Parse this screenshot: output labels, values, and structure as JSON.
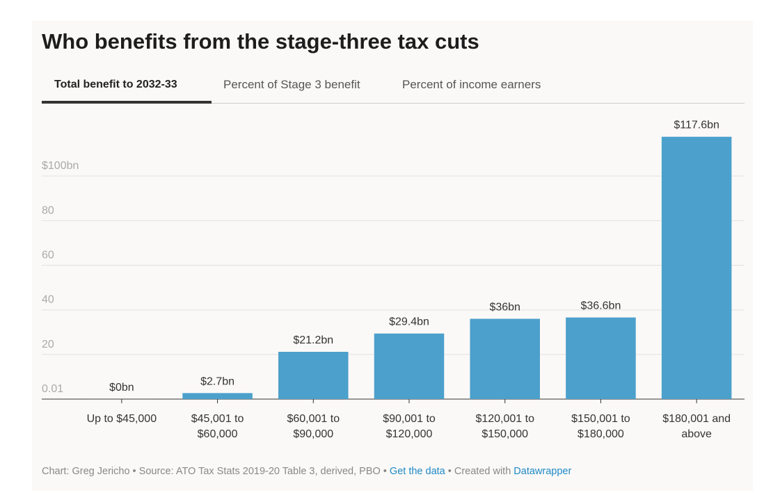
{
  "header": {
    "title": "Who benefits from the stage-three tax cuts"
  },
  "tabs": [
    "Total benefit to 2032-33",
    "Percent of Stage 3 benefit",
    "Percent of income earners"
  ],
  "chart_data": {
    "type": "bar",
    "categories": [
      "Up to $45,000",
      "$45,001 to\n$60,000",
      "$60,001 to\n$90,000",
      "$90,001 to\n$120,000",
      "$120,001 to\n$150,000",
      "$150,001 to\n$180,000",
      "$180,001 and\nabove"
    ],
    "values": [
      0,
      2.7,
      21.2,
      29.4,
      36,
      36.6,
      117.6
    ],
    "value_labels": [
      "$0bn",
      "$2.7bn",
      "$21.2bn",
      "$29.4bn",
      "$36bn",
      "$36.6bn",
      "$117.6bn"
    ],
    "color": "#4ca0cc",
    "ylim": [
      0.01,
      120
    ],
    "yticks": [
      0.01,
      20,
      40,
      60,
      80,
      {
        "value": 100,
        "label": "$100bn"
      }
    ],
    "grid": true
  },
  "footer": {
    "credit": "Chart: Greg Jericho • Source: ATO Tax Stats 2019-20 Table 3, derived, PBO • ",
    "data_link": "Get the data",
    "separator": " • Created with ",
    "tool_link": "Datawrapper"
  }
}
